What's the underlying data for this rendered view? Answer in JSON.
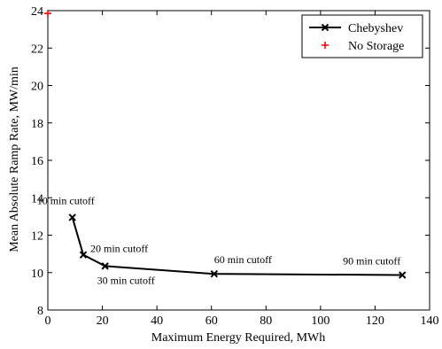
{
  "chart_data": {
    "type": "line",
    "xlabel": "Maximum Energy Required, MWh",
    "ylabel": "Mean Absolute Ramp Rate, MW/min",
    "xlim": [
      0,
      140
    ],
    "ylim": [
      8,
      24
    ],
    "xticks": [
      0,
      20,
      40,
      60,
      80,
      100,
      120,
      140
    ],
    "yticks": [
      8,
      10,
      12,
      14,
      16,
      18,
      20,
      22,
      24
    ],
    "grid": false,
    "legend_position": "top-right",
    "series": [
      {
        "name": "Chebyshev",
        "marker": "x",
        "color": "#000000",
        "points": [
          {
            "x": 9,
            "y": 12.95
          },
          {
            "x": 13,
            "y": 10.95
          },
          {
            "x": 21,
            "y": 10.35
          },
          {
            "x": 61,
            "y": 9.93
          },
          {
            "x": 130,
            "y": 9.87
          }
        ]
      },
      {
        "name": "No Storage",
        "marker": "+",
        "color": "#ff0000",
        "points": [
          {
            "x": 0,
            "y": 23.85
          }
        ]
      }
    ],
    "annotations": [
      {
        "text": "10 min cutoff",
        "x": 9,
        "y": 12.95
      },
      {
        "text": "20 min cutoff",
        "x": 13,
        "y": 10.95
      },
      {
        "text": "30 min cutoff",
        "x": 21,
        "y": 10.35
      },
      {
        "text": "60 min cutoff",
        "x": 61,
        "y": 9.93
      },
      {
        "text": "90 min cutoff",
        "x": 130,
        "y": 9.87
      }
    ]
  }
}
